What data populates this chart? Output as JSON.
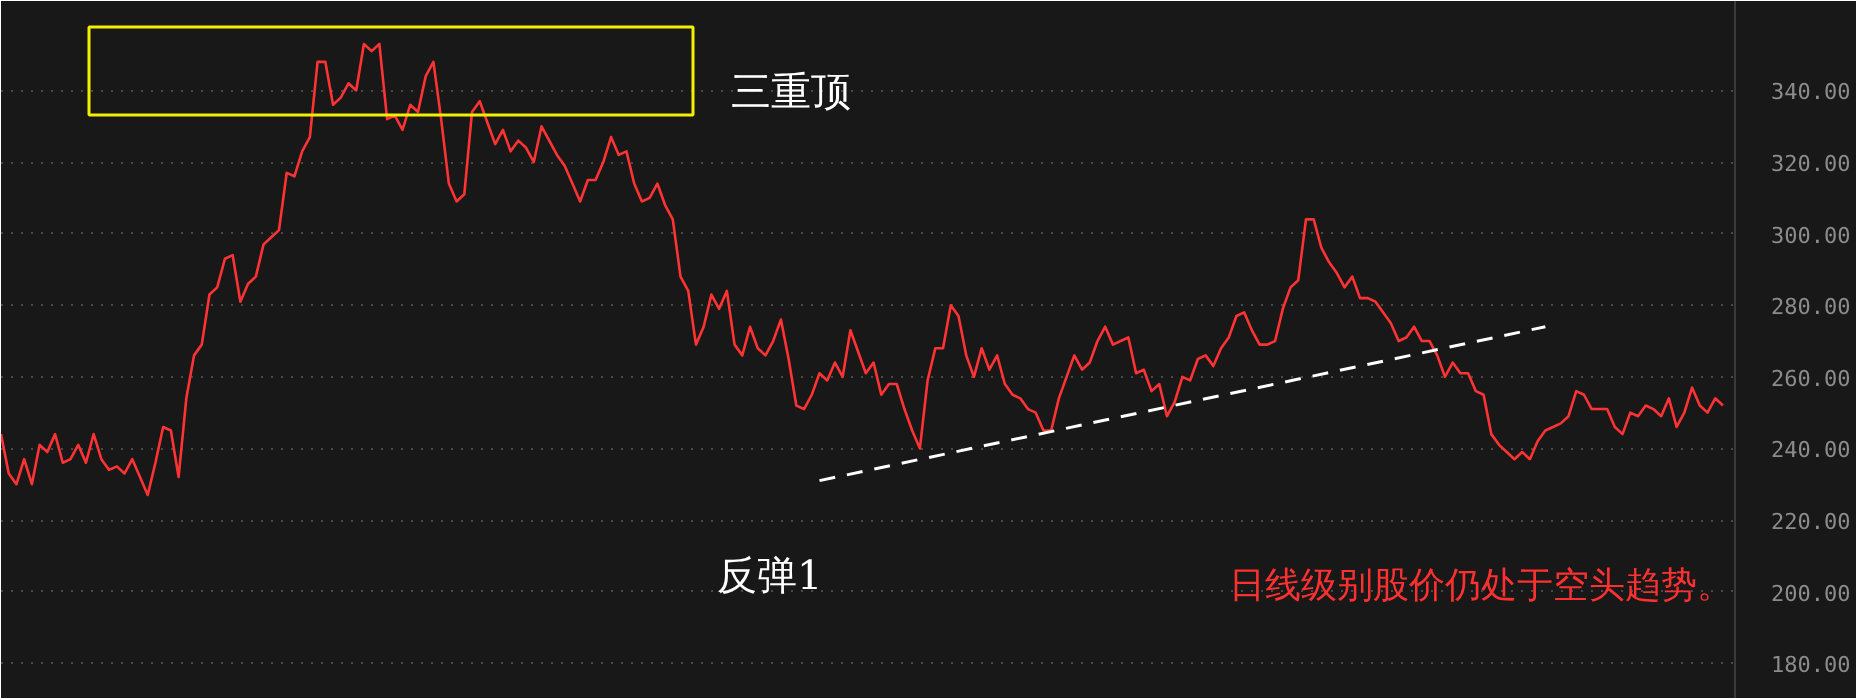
{
  "chart_data": {
    "type": "line",
    "categories": [
      null,
      null,
      null,
      null,
      null,
      null,
      null,
      null,
      null,
      null,
      null,
      null,
      null,
      null,
      null,
      null,
      null,
      null,
      null,
      null,
      null,
      null,
      null,
      null,
      null,
      null,
      null,
      null,
      null,
      null,
      null,
      null,
      null,
      null,
      null,
      null,
      null,
      null,
      null,
      null,
      null,
      null,
      null,
      null,
      null,
      null,
      null,
      null,
      null,
      null,
      null,
      null,
      null,
      null,
      null,
      null,
      null,
      null,
      null,
      null,
      null,
      null,
      null,
      null,
      null,
      null,
      null,
      null,
      null,
      null,
      null,
      null,
      null,
      null,
      null,
      null,
      null,
      null,
      null,
      null,
      null,
      null,
      null,
      null,
      null,
      null,
      null,
      null,
      null,
      null,
      null,
      null,
      null,
      null,
      null,
      null,
      null,
      null,
      null,
      null,
      null,
      null,
      null,
      null,
      null,
      null,
      null,
      null,
      null,
      null,
      null,
      null,
      null,
      null,
      null,
      null,
      null,
      null,
      null,
      null,
      null,
      null,
      null,
      null,
      null,
      null,
      null,
      null,
      null,
      null,
      null,
      null,
      null,
      null,
      null,
      null,
      null,
      null,
      null,
      null,
      null,
      null,
      null,
      null,
      null,
      null,
      null,
      null,
      null,
      null,
      null,
      null,
      null,
      null,
      null,
      null,
      null,
      null,
      null,
      null,
      null,
      null,
      null,
      null,
      null,
      null,
      null,
      null,
      null,
      null,
      null,
      null,
      null,
      null,
      null,
      null,
      null,
      null,
      null,
      null,
      null,
      null,
      null,
      null,
      null,
      null,
      null,
      null,
      null,
      null,
      null,
      null,
      null,
      null,
      null,
      null,
      null,
      null,
      null,
      null,
      null,
      null,
      null,
      null,
      null,
      null,
      null,
      null,
      null,
      null,
      null,
      null,
      null,
      null,
      null,
      null,
      null,
      null,
      null,
      null,
      null,
      null,
      null,
      null
    ],
    "series": [
      {
        "color": "#ff3333",
        "values": [
          244,
          233,
          230,
          237,
          230,
          241,
          239,
          244,
          236,
          237,
          241,
          236,
          244,
          237,
          234,
          235,
          233,
          237,
          232,
          227,
          236,
          246,
          245,
          232,
          254,
          266,
          269,
          283,
          285,
          293,
          294,
          281,
          286,
          288,
          297,
          299,
          301,
          317,
          316,
          323,
          327,
          348,
          348,
          336,
          338,
          342,
          340,
          353,
          351,
          353,
          332,
          333,
          329,
          336,
          334,
          344,
          348,
          332,
          314,
          309,
          311,
          334,
          337,
          331,
          325,
          329,
          323,
          326,
          324,
          320,
          330,
          326,
          322,
          319,
          314,
          309,
          315,
          315,
          320,
          327,
          322,
          323,
          314,
          309,
          310,
          314,
          308,
          304,
          288,
          284,
          269,
          274,
          283,
          279,
          284,
          269,
          266,
          274,
          268,
          266,
          270,
          276,
          265,
          252,
          251,
          255,
          261,
          259,
          264,
          260,
          273,
          267,
          261,
          264,
          255,
          258,
          258,
          251,
          245,
          240,
          259,
          268,
          268,
          280,
          277,
          266,
          260,
          268,
          262,
          266,
          258,
          255,
          254,
          251,
          250,
          245,
          245,
          254,
          260,
          266,
          262,
          264,
          270,
          274,
          269,
          270,
          271,
          261,
          262,
          256,
          258,
          249,
          253,
          260,
          259,
          265,
          266,
          263,
          268,
          271,
          277,
          278,
          273,
          269,
          269,
          270,
          279,
          285,
          287,
          304,
          304,
          296,
          292,
          289,
          285,
          288,
          282,
          282,
          281,
          278,
          275,
          270,
          271,
          274,
          270,
          270,
          266,
          260,
          264,
          261,
          261,
          256,
          255,
          244,
          241,
          239,
          237,
          239,
          237,
          242,
          245,
          246,
          247,
          249,
          256,
          255,
          251,
          251,
          251,
          246,
          244,
          250,
          249,
          252,
          251,
          249,
          254,
          246,
          250,
          257,
          252,
          250,
          254,
          252
        ]
      },
      {
        "type": "line",
        "color": "#ffffff",
        "line_style": "dashed",
        "values": [
          null,
          null,
          null,
          null,
          null,
          null,
          null,
          null,
          null,
          null,
          null,
          null,
          null,
          null,
          null,
          null,
          null,
          null,
          null,
          null,
          null,
          null,
          null,
          null,
          null,
          null,
          null,
          null,
          null,
          null,
          null,
          null,
          null,
          null,
          null,
          null,
          null,
          null,
          null,
          null,
          null,
          null,
          null,
          null,
          null,
          null,
          null,
          null,
          null,
          null,
          null,
          null,
          null,
          null,
          null,
          null,
          null,
          null,
          null,
          null,
          null,
          null,
          null,
          null,
          null,
          null,
          null,
          null,
          null,
          null,
          null,
          null,
          null,
          null,
          null,
          null,
          null,
          null,
          null,
          null,
          null,
          null,
          null,
          null,
          null,
          null,
          null,
          null,
          null,
          null,
          null,
          null,
          null,
          null,
          null,
          null,
          null,
          null,
          null,
          null,
          null,
          null,
          null,
          null,
          null,
          null,
          231,
          null,
          null,
          null,
          null,
          null,
          null,
          null,
          null,
          null,
          null,
          null,
          null,
          null,
          null,
          null,
          null,
          null,
          null,
          null,
          null,
          null,
          null,
          null,
          null,
          null,
          null,
          null,
          null,
          null,
          null,
          null,
          null,
          null,
          null,
          null,
          null,
          null,
          null,
          null,
          null,
          null,
          null,
          null,
          null,
          null,
          null,
          null,
          null,
          null,
          null,
          null,
          null,
          null,
          null,
          null,
          null,
          null,
          null,
          null,
          null,
          null,
          null,
          null,
          null,
          null,
          null,
          null,
          null,
          null,
          null,
          null,
          null,
          null,
          null,
          null,
          null,
          null,
          null,
          null,
          null,
          null,
          null,
          null,
          null,
          null,
          null,
          null,
          null,
          null,
          null,
          null,
          null,
          null,
          274,
          null,
          null,
          null,
          null,
          null,
          null,
          null,
          null,
          null,
          null,
          null,
          null,
          null,
          null,
          null,
          null,
          null,
          null,
          null,
          null,
          null,
          null,
          null
        ]
      }
    ],
    "ylim": [
      170,
      365
    ],
    "yticks": [
      {
        "value": 180,
        "label": "180.00"
      },
      {
        "value": 200,
        "label": "200.00"
      },
      {
        "value": 220,
        "label": "220.00"
      },
      {
        "value": 240,
        "label": "240.00"
      },
      {
        "value": 260,
        "label": "260.00"
      },
      {
        "value": 280,
        "label": "280.00"
      },
      {
        "value": 300,
        "label": "300.00"
      },
      {
        "value": 320,
        "label": "320.00"
      },
      {
        "value": 340,
        "label": "340.00"
      }
    ],
    "grid": "y",
    "tick_labels": "y",
    "annotations": [
      "三重顶",
      "反弹1",
      "日线级别股价仍处于空头趋势。"
    ]
  }
}
